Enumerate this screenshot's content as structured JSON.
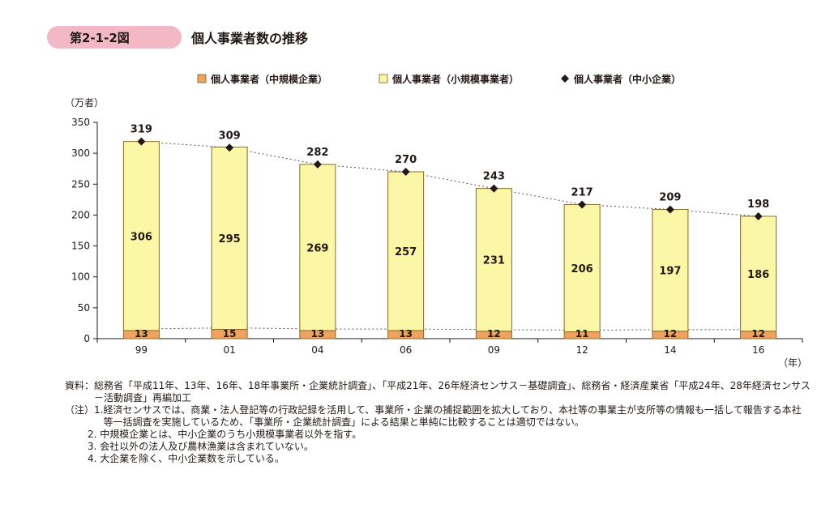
{
  "figure": {
    "label": "第2-1-2図",
    "title": "個人事業者数の推移"
  },
  "chart_data": {
    "type": "bar",
    "stacked": true,
    "yunit": "（万者）",
    "xunit": "（年）",
    "ylim": [
      0,
      350
    ],
    "yticks": [
      0,
      50,
      100,
      150,
      200,
      250,
      300,
      350
    ],
    "categories": [
      "99",
      "01",
      "04",
      "06",
      "09",
      "12",
      "14",
      "16"
    ],
    "series": [
      {
        "name": "個人事業者（中規模企業）",
        "type": "bar",
        "color": "#f0a35e",
        "values": [
          13,
          15,
          13,
          13,
          12,
          11,
          12,
          12
        ]
      },
      {
        "name": "個人事業者（小規模事業者）",
        "type": "bar",
        "color": "#fbf7a6",
        "values": [
          306,
          295,
          269,
          257,
          231,
          206,
          197,
          186
        ]
      },
      {
        "name": "個人事業者（中小企業）",
        "type": "line-marker",
        "color": "#231815",
        "values": [
          319,
          309,
          282,
          270,
          243,
          217,
          209,
          198
        ]
      }
    ]
  },
  "notes": {
    "source_prefix": "資料：",
    "source": "総務省「平成11年、13年、16年、18年事業所・企業統計調査」、「平成21年、26年経済センサス－基礎調査」、総務省・経済産業省「平成24年、28年経済センサス－活動調査」再編加工",
    "note_prefix": "（注）1.",
    "note1": "経済センサスでは、商業・法人登記等の行政記録を活用して、事業所・企業の捕捉範囲を拡大しており、本社等の事業主が支所等の情報も一括して報告する本社等一括調査を実施しているため、「事業所・企業統計調査」による結果と単純に比較することは適切ではない。",
    "note2": "2. 中規模企業とは、中小企業のうち小規模事業者以外を指す。",
    "note3": "3. 会社以外の法人及び農林漁業は含まれていない。",
    "note4": "4. 大企業を除く、中小企業数を示している。"
  }
}
